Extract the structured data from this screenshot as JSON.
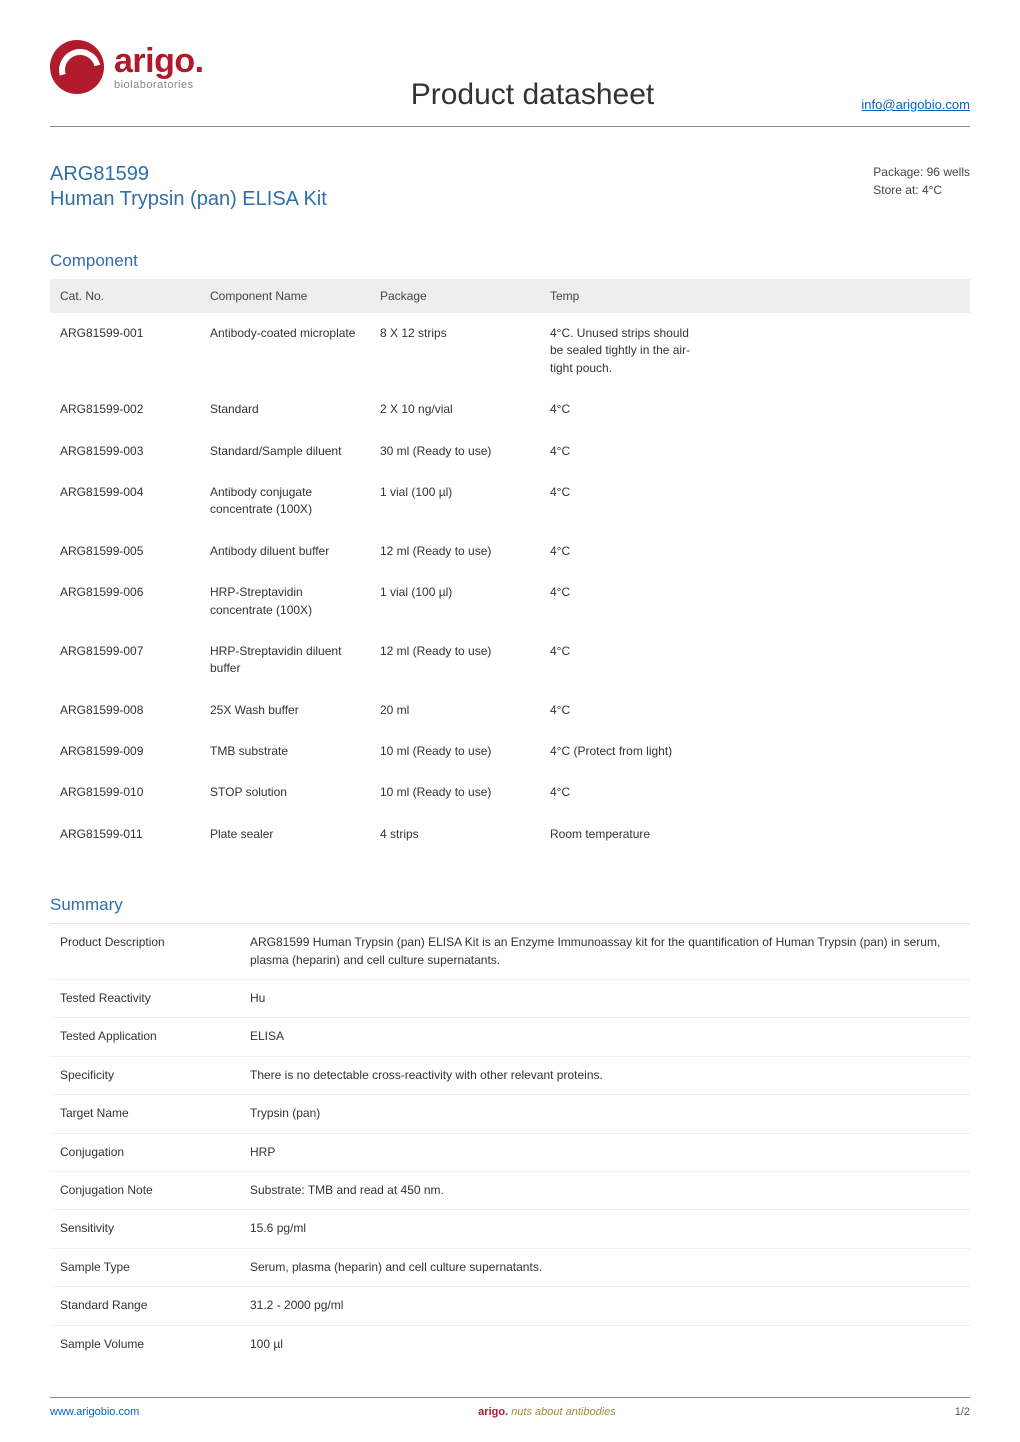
{
  "brand": {
    "name": "arigo.",
    "sub": "biolaboratories"
  },
  "doc_title": "Product datasheet",
  "info_link": "info@arigobio.com",
  "product": {
    "cat_no": "ARG81599",
    "name": "Human Trypsin (pan) ELISA Kit",
    "package_label": "Package: 96 wells",
    "storage_label": "Store at: 4°C"
  },
  "sections": {
    "component_title": "Component",
    "summary_title": "Summary"
  },
  "component_table": {
    "headers": [
      "Cat. No.",
      "Component Name",
      "Package",
      "Temp"
    ],
    "rows": [
      [
        "ARG81599-001",
        "Antibody-coated microplate",
        "8 X 12 strips",
        "4°C. Unused strips should be sealed tightly in the air-tight pouch."
      ],
      [
        "ARG81599-002",
        "Standard",
        "2 X 10 ng/vial",
        "4°C"
      ],
      [
        "ARG81599-003",
        "Standard/Sample diluent",
        "30 ml (Ready to use)",
        "4°C"
      ],
      [
        "ARG81599-004",
        "Antibody conjugate concentrate (100X)",
        "1 vial (100 µl)",
        "4°C"
      ],
      [
        "ARG81599-005",
        "Antibody diluent buffer",
        "12 ml (Ready to use)",
        "4°C"
      ],
      [
        "ARG81599-006",
        "HRP-Streptavidin concentrate (100X)",
        "1 vial (100 µl)",
        "4°C"
      ],
      [
        "ARG81599-007",
        "HRP-Streptavidin diluent buffer",
        "12 ml (Ready to use)",
        "4°C"
      ],
      [
        "ARG81599-008",
        "25X Wash buffer",
        "20 ml",
        "4°C"
      ],
      [
        "ARG81599-009",
        "TMB substrate",
        "10 ml (Ready to use)",
        "4°C (Protect from light)"
      ],
      [
        "ARG81599-010",
        "STOP solution",
        "10 ml (Ready to use)",
        "4°C"
      ],
      [
        "ARG81599-011",
        "Plate sealer",
        "4 strips",
        "Room temperature"
      ]
    ]
  },
  "summary_table": {
    "rows": [
      [
        "Product Description",
        "ARG81599 Human Trypsin (pan) ELISA Kit is an Enzyme Immunoassay kit for the quantification of Human Trypsin (pan) in serum, plasma (heparin) and cell culture supernatants."
      ],
      [
        "Tested Reactivity",
        "Hu"
      ],
      [
        "Tested Application",
        "ELISA"
      ],
      [
        "Specificity",
        "There is no detectable cross-reactivity with other relevant proteins."
      ],
      [
        "Target Name",
        "Trypsin (pan)"
      ],
      [
        "Conjugation",
        "HRP"
      ],
      [
        "Conjugation Note",
        "Substrate: TMB and read at 450 nm."
      ],
      [
        "Sensitivity",
        "15.6 pg/ml"
      ],
      [
        "Sample Type",
        "Serum, plasma (heparin) and cell culture supernatants."
      ],
      [
        "Standard Range",
        "31.2 - 2000 pg/ml"
      ],
      [
        "Sample Volume",
        "100 µl"
      ]
    ]
  },
  "footer": {
    "url": "www.arigobio.com",
    "tag_brand": "arigo.",
    "tag_rest": "nuts about antibodies",
    "page": "1/2"
  },
  "colors": {
    "brand_red": "#b11a2b",
    "heading_blue": "#2f6fa7",
    "link_blue": "#0563c1",
    "text": "#333333",
    "th_bg": "#eeeeee",
    "rule": "#888888"
  }
}
